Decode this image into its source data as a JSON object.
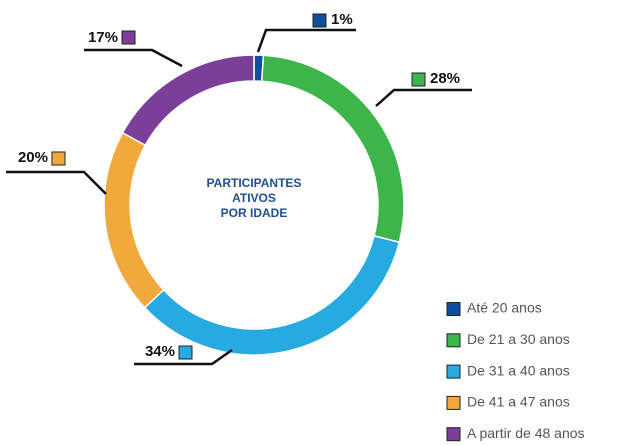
{
  "chart_data": {
    "type": "donut",
    "title": [
      "PARTICIPANTES",
      "ATIVOS",
      "POR IDADE"
    ],
    "categories": [
      "Até 20 anos",
      "De 21 a 30 anos",
      "De 31 a 40 anos",
      "De 41 a 47 anos",
      "A partir de 48 anos"
    ],
    "values": [
      1,
      28,
      34,
      20,
      17
    ],
    "value_labels": [
      "1%",
      "28%",
      "34%",
      "20%",
      "17%"
    ],
    "colors": [
      "#0d4f9c",
      "#3db54a",
      "#27a9e1",
      "#f1a93b",
      "#7b3f9a"
    ],
    "legend": "bottom-right"
  }
}
